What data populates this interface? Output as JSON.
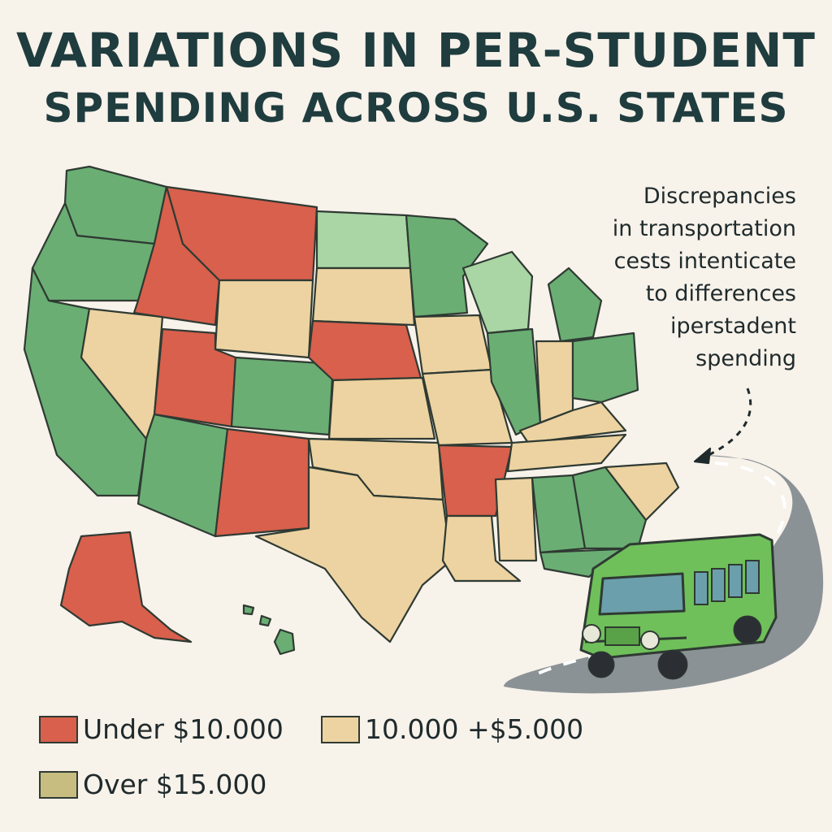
{
  "title": {
    "line1": "VARIATIONS IN PER-STUDENT",
    "line2": "SPENDING ACROSS U.S. STATES"
  },
  "annotation": {
    "lines": [
      "Discrepancies",
      "in transportation",
      "cests intenticate",
      "to differences",
      "iperstadent",
      "spending"
    ]
  },
  "legend": [
    {
      "label": "Under $10.000",
      "color": "#d8604c"
    },
    {
      "label": "10.000 +$5.000",
      "color": "#ecd3a1"
    },
    {
      "label": "Over $15.000",
      "color": "#c8bd80"
    }
  ],
  "colors": {
    "low": "#d8604c",
    "mid": "#ecd3a1",
    "green": "#6aae73",
    "green_light": "#a9d6a4",
    "road": "#8b9296",
    "bus": "#6fc05a"
  },
  "icons": [
    "school-bus-icon",
    "road-icon",
    "dashed-arrow-icon"
  ]
}
